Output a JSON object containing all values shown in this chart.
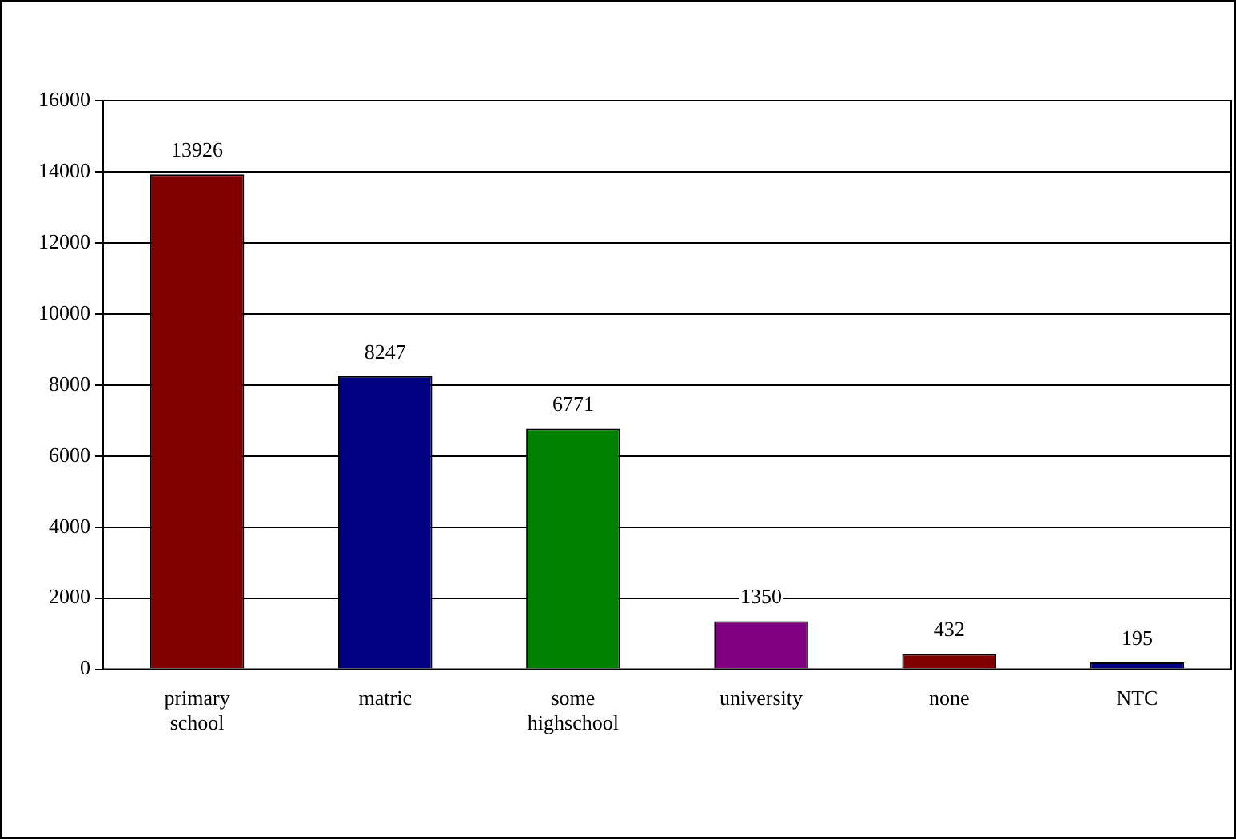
{
  "chart_data": {
    "type": "bar",
    "categories": [
      "primary school",
      "matric",
      "some highschool",
      "university",
      "none",
      "NTC"
    ],
    "values": [
      13926,
      8247,
      6771,
      1350,
      432,
      195
    ],
    "colors": [
      "#800000",
      "#000080",
      "#008000",
      "#800080",
      "#800000",
      "#000080"
    ],
    "ylim": [
      0,
      16000
    ],
    "yticks": [
      0,
      2000,
      4000,
      6000,
      8000,
      10000,
      12000,
      14000,
      16000
    ],
    "grid": "y",
    "data_labels": true,
    "legend": false
  }
}
